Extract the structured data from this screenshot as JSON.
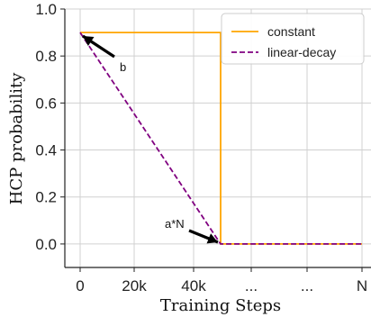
{
  "chart_data": {
    "type": "line",
    "xlabel": "Training Steps",
    "ylabel": "HCP probability",
    "x_tick_labels": [
      "0",
      "20k",
      "40k",
      "...",
      "...",
      "N"
    ],
    "y_tick_labels": [
      "0.0",
      "0.2",
      "0.4",
      "0.6",
      "0.8",
      "1.0"
    ],
    "y_ticks": [
      0.0,
      0.2,
      0.4,
      0.6,
      0.8,
      1.0
    ],
    "ylim": [
      -0.1,
      1.0
    ],
    "grid": true,
    "legend_position": "top-right",
    "series": [
      {
        "name": "constant",
        "color": "#FFA500",
        "style": "solid",
        "points": [
          [
            "0",
            0.9
          ],
          [
            "a*N",
            0.9
          ],
          [
            "a*N",
            0.0
          ],
          [
            "N",
            0.0
          ]
        ]
      },
      {
        "name": "linear-decay",
        "color": "#800080",
        "style": "dashed",
        "points": [
          [
            "0",
            0.9
          ],
          [
            "a*N",
            0.0
          ],
          [
            "N",
            0.0
          ]
        ]
      }
    ],
    "annotations": [
      {
        "text": "b",
        "target": [
          "0",
          0.9
        ]
      },
      {
        "text": "a*N",
        "target": [
          "a*N",
          0.0
        ]
      }
    ]
  }
}
